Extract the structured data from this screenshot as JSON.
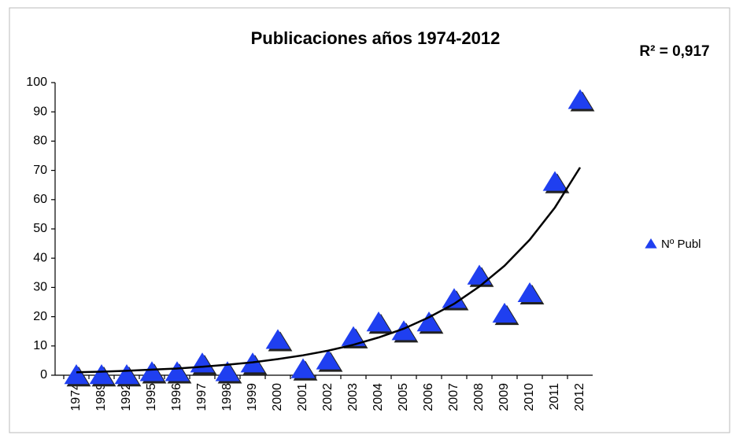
{
  "chart_data": {
    "type": "scatter",
    "title": "Publicaciones años 1974-2012",
    "annotation": "R² = 0,917",
    "categories": [
      "1974",
      "1989",
      "1992",
      "1995",
      "1996",
      "1997",
      "1998",
      "1999",
      "2000",
      "2001",
      "2002",
      "2003",
      "2004",
      "2005",
      "2006",
      "2007",
      "2008",
      "2009",
      "2010",
      "2011",
      "2012"
    ],
    "series": [
      {
        "name": "Nº Publ",
        "color": "#1f3ff0",
        "marker": "triangle",
        "values": [
          0,
          0,
          0,
          1,
          1,
          4,
          1,
          4,
          12,
          2,
          5,
          13,
          18,
          15,
          18,
          26,
          34,
          21,
          28,
          66,
          94
        ]
      }
    ],
    "trendline": {
      "type": "exponential",
      "color": "#000000",
      "values": [
        1.0,
        1.2,
        1.5,
        1.9,
        2.3,
        2.9,
        3.6,
        4.4,
        5.5,
        6.8,
        8.4,
        10.4,
        12.9,
        15.9,
        19.8,
        24.4,
        30.3,
        37.4,
        46.3,
        57.3,
        71.0
      ]
    },
    "ylim": [
      0,
      100
    ],
    "yticks": [
      0,
      10,
      20,
      30,
      40,
      50,
      60,
      70,
      80,
      90,
      100
    ],
    "grid": false,
    "legend": "right"
  }
}
